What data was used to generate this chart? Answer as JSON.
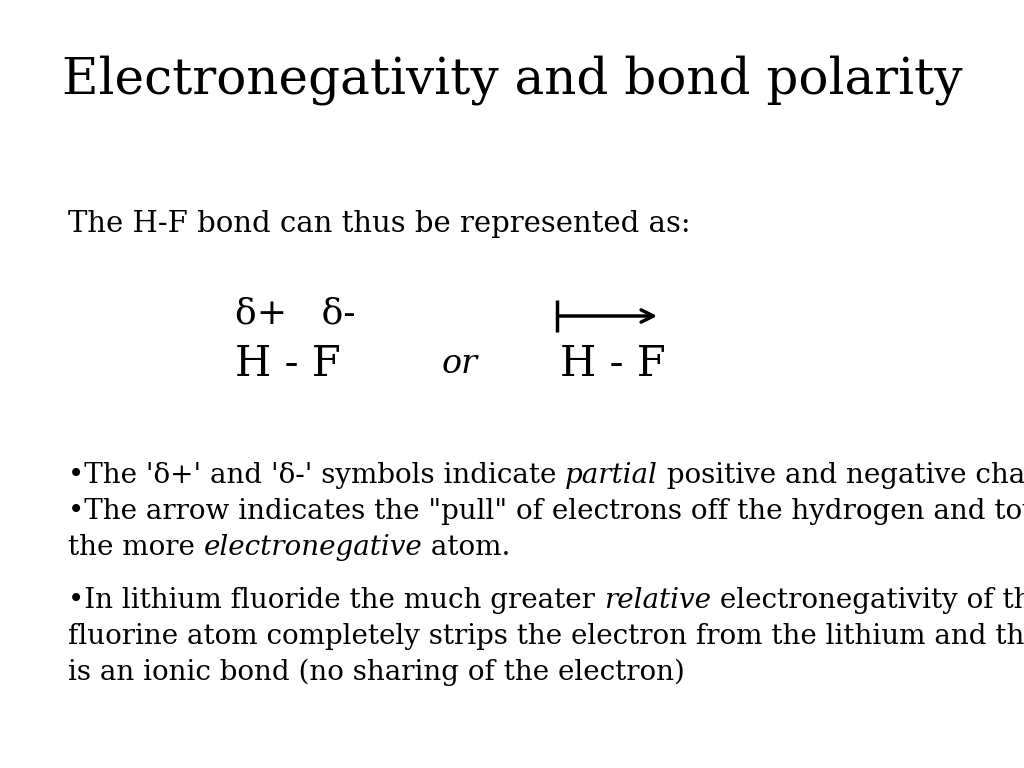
{
  "bg_color": "#ffffff",
  "text_color": "#000000",
  "title": "Electronegativity and bond polarity",
  "title_fontsize": 36,
  "intro_text": "The H-F bond can thus be represented as:",
  "intro_fontsize": 21,
  "delta_text": "δ+   δ-",
  "delta_fontsize": 26,
  "hf_text": "H - F",
  "hf_fontsize": 30,
  "or_fontsize": 24,
  "bullet_fontsize": 20,
  "bullet1a": "•The 'δ+' and 'δ-' symbols indicate ",
  "bullet1b": "partial",
  "bullet1c": " positive and negative charges.",
  "bullet2": "•The arrow indicates the \"pull\" of electrons off the hydrogen and towards",
  "bullet2b_pre": "the more ",
  "bullet2b_mid": "electronegative",
  "bullet2b_post": " atom.",
  "bullet3a": "•In lithium fluoride the much greater ",
  "bullet3b": "relative",
  "bullet3c": " electronegativity of the",
  "bullet4": "fluorine atom completely strips the electron from the lithium and the result",
  "bullet5": "is an ionic bond (no sharing of the electron)"
}
